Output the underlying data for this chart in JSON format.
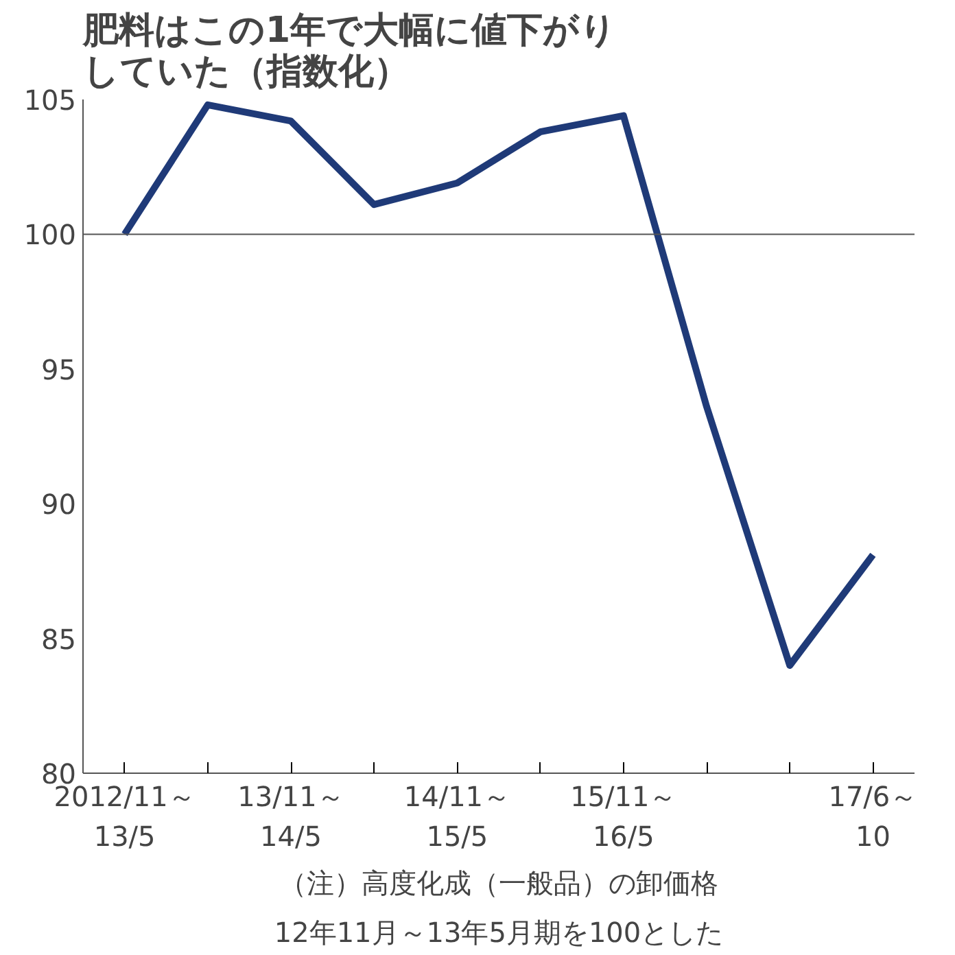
{
  "chart_data": {
    "type": "line",
    "title": "肥料はこの1年で大幅に値下がりしていた（指数化）",
    "categories": [
      "2012/11～13/5",
      null,
      "13/11～14/5",
      null,
      "14/11～15/5",
      null,
      "15/11～16/5",
      null,
      null,
      "17/6～10"
    ],
    "values": [
      100,
      104.8,
      104.2,
      101.1,
      101.9,
      103.8,
      104.4,
      93.6,
      84.0,
      88.1
    ],
    "color": "#1f3a78",
    "ylim": [
      80,
      105
    ],
    "yticks": [
      80,
      85,
      90,
      95,
      100,
      105
    ],
    "grid": false,
    "marker": "none",
    "line_style": "solid",
    "ref_lines": [
      {
        "axis": "y",
        "value": 100,
        "label": null,
        "color": "#555555"
      }
    ],
    "annotations": [
      "（注）高度化成（一般品）の卸価格",
      "12年11月～13年5月期を100とした"
    ]
  }
}
